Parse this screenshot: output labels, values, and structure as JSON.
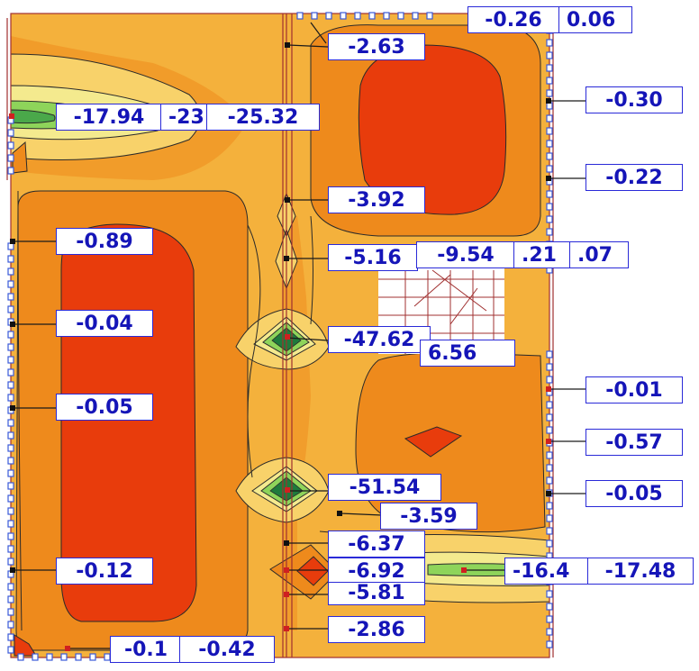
{
  "diagram": {
    "colors": {
      "background": "#ffffff",
      "fill_low": "#f4b13c",
      "fill_mid": "#ee8a1c",
      "fill_high": "#e83c0c",
      "fill_light": "#f8d26a",
      "fill_pale": "#f4ea8e",
      "fill_green": "#8ed45a",
      "fill_dark_green": "#1e7a3c",
      "contour": "#2a2a2a",
      "frame": "#a03030",
      "label_border": "#2a2ad8",
      "label_text": "#1515b8",
      "support_marker": "#3a5ad8"
    },
    "labels": [
      {
        "id": "l1",
        "text": "-0.26"
      },
      {
        "id": "l2",
        "text": "0.06"
      },
      {
        "id": "l3",
        "text": "-2.63"
      },
      {
        "id": "l4",
        "text": "-0.30"
      },
      {
        "id": "l5",
        "text": "-17.94"
      },
      {
        "id": "l6",
        "text": "-23"
      },
      {
        "id": "l7",
        "text": "-25.32"
      },
      {
        "id": "l8",
        "text": "-0.22"
      },
      {
        "id": "l9",
        "text": "-3.92"
      },
      {
        "id": "l10",
        "text": "-0.89"
      },
      {
        "id": "l11",
        "text": "-5.16"
      },
      {
        "id": "l12",
        "text": "-9.54"
      },
      {
        "id": "l13",
        "text": ".21"
      },
      {
        "id": "l14",
        "text": ".07"
      },
      {
        "id": "l15",
        "text": "-0.04"
      },
      {
        "id": "l16",
        "text": "-47.62"
      },
      {
        "id": "l17",
        "text": "6.56"
      },
      {
        "id": "l18",
        "text": "-0.05"
      },
      {
        "id": "l19",
        "text": "-0.01"
      },
      {
        "id": "l20",
        "text": "-0.57"
      },
      {
        "id": "l21",
        "text": "-51.54"
      },
      {
        "id": "l22",
        "text": "-0.05"
      },
      {
        "id": "l23",
        "text": "-3.59"
      },
      {
        "id": "l24",
        "text": "-6.37"
      },
      {
        "id": "l25",
        "text": "-0.12"
      },
      {
        "id": "l26",
        "text": "-6.92"
      },
      {
        "id": "l27",
        "text": "-16.4"
      },
      {
        "id": "l28",
        "text": "-17.48"
      },
      {
        "id": "l29",
        "text": "-5.81"
      },
      {
        "id": "l30",
        "text": "-2.86"
      },
      {
        "id": "l31",
        "text": "-0.1"
      },
      {
        "id": "l32",
        "text": "-0.42"
      }
    ]
  }
}
